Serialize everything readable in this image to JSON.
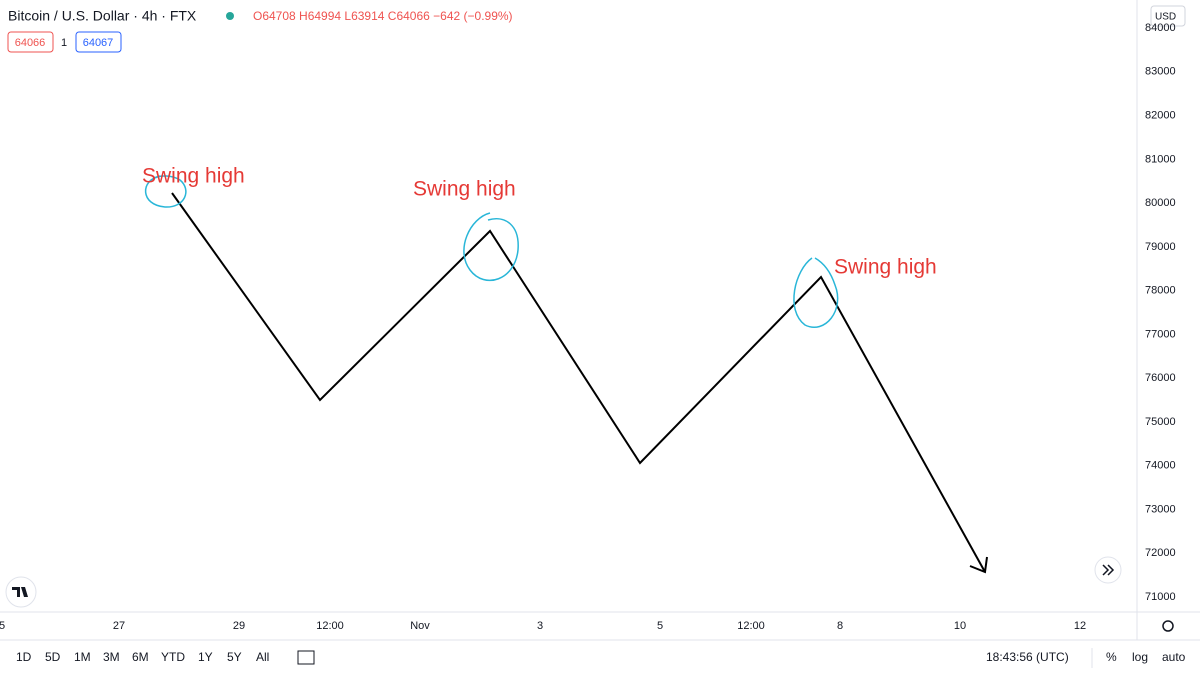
{
  "header": {
    "symbol": "Bitcoin / U.S. Dollar · 4h · FTX",
    "ohlc": "O64708 H64994 L63914 C64066 −642 (−0.99%)",
    "bid": "64066",
    "spread": "1",
    "ask": "64067",
    "currency": "USD"
  },
  "chart": {
    "ylim": [
      70660,
      84640
    ],
    "yticks": [
      71000,
      72000,
      73000,
      74000,
      75000,
      76000,
      77000,
      78000,
      79000,
      80000,
      81000,
      82000,
      83000,
      84000
    ],
    "xticks": [
      "5",
      "27",
      "29",
      "12:00",
      "Nov",
      "3",
      "5",
      "12:00",
      "8",
      "10",
      "12"
    ],
    "annotations": [
      "Swing high",
      "Swing high",
      "Swing high"
    ]
  },
  "toolbar": {
    "ranges": [
      "1D",
      "5D",
      "1M",
      "3M",
      "6M",
      "YTD",
      "1Y",
      "5Y",
      "All"
    ],
    "time": "18:43:56 (UTC)",
    "percent": "%",
    "log": "log",
    "auto": "auto"
  }
}
